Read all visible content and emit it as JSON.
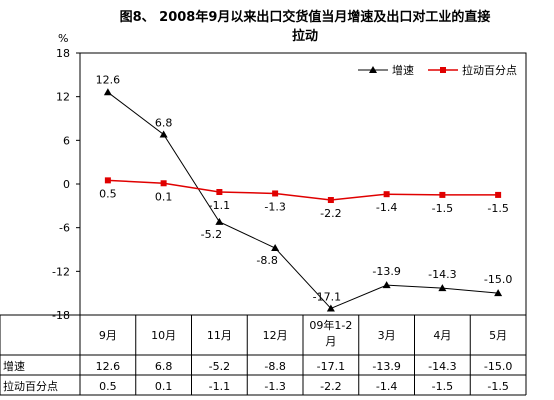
{
  "chart_data": {
    "type": "line",
    "title": "图8、  2008年9月以来出口交货值当月增速及出口对工业的直接拉动",
    "title_line1": "图8、  2008年9月以来出口交货值当月增速及出口对工业的直接",
    "title_line2": "拉动",
    "y_unit": "%",
    "ylim": [
      -18,
      18
    ],
    "yticks": [
      "18",
      "12",
      "6",
      "0",
      "-6",
      "-12",
      "-18"
    ],
    "ytick_values": [
      18,
      12,
      6,
      0,
      -6,
      -12,
      -18
    ],
    "categories": [
      "9月",
      "10月",
      "11月",
      "12月",
      "09年1-2月",
      "3月",
      "4月",
      "5月"
    ],
    "categories_display": [
      [
        "9月"
      ],
      [
        "10月"
      ],
      [
        "11月"
      ],
      [
        "12月"
      ],
      [
        "09年1-2",
        "月"
      ],
      [
        "3月"
      ],
      [
        "4月"
      ],
      [
        "5月"
      ]
    ],
    "legend_position": "top-right",
    "series": [
      {
        "name": "增速",
        "color": "#000000",
        "marker": "triangle",
        "values": [
          12.6,
          6.8,
          -5.2,
          -8.8,
          -17.1,
          -13.9,
          -14.3,
          -15.0
        ],
        "labels": [
          "12.6",
          "6.8",
          "-5.2",
          "-8.8",
          "-17.1",
          "-13.9",
          "-14.3",
          "-15.0"
        ]
      },
      {
        "name": "拉动百分点",
        "color": "#e00000",
        "marker": "square",
        "values": [
          0.5,
          0.1,
          -1.1,
          -1.3,
          -2.2,
          -1.4,
          -1.5,
          -1.5
        ],
        "labels": [
          "0.5",
          "0.1",
          "-1.1",
          "-1.3",
          "-2.2",
          "-1.4",
          "-1.5",
          "-1.5"
        ]
      }
    ],
    "table": {
      "rows": [
        {
          "name": "增速",
          "values": [
            "12.6",
            "6.8",
            "-5.2",
            "-8.8",
            "-17.1",
            "-13.9",
            "-14.3",
            "-15.0"
          ]
        },
        {
          "name": "拉动百分点",
          "values": [
            "0.5",
            "0.1",
            "-1.1",
            "-1.3",
            "-2.2",
            "-1.4",
            "-1.5",
            "-1.5"
          ]
        }
      ]
    }
  }
}
